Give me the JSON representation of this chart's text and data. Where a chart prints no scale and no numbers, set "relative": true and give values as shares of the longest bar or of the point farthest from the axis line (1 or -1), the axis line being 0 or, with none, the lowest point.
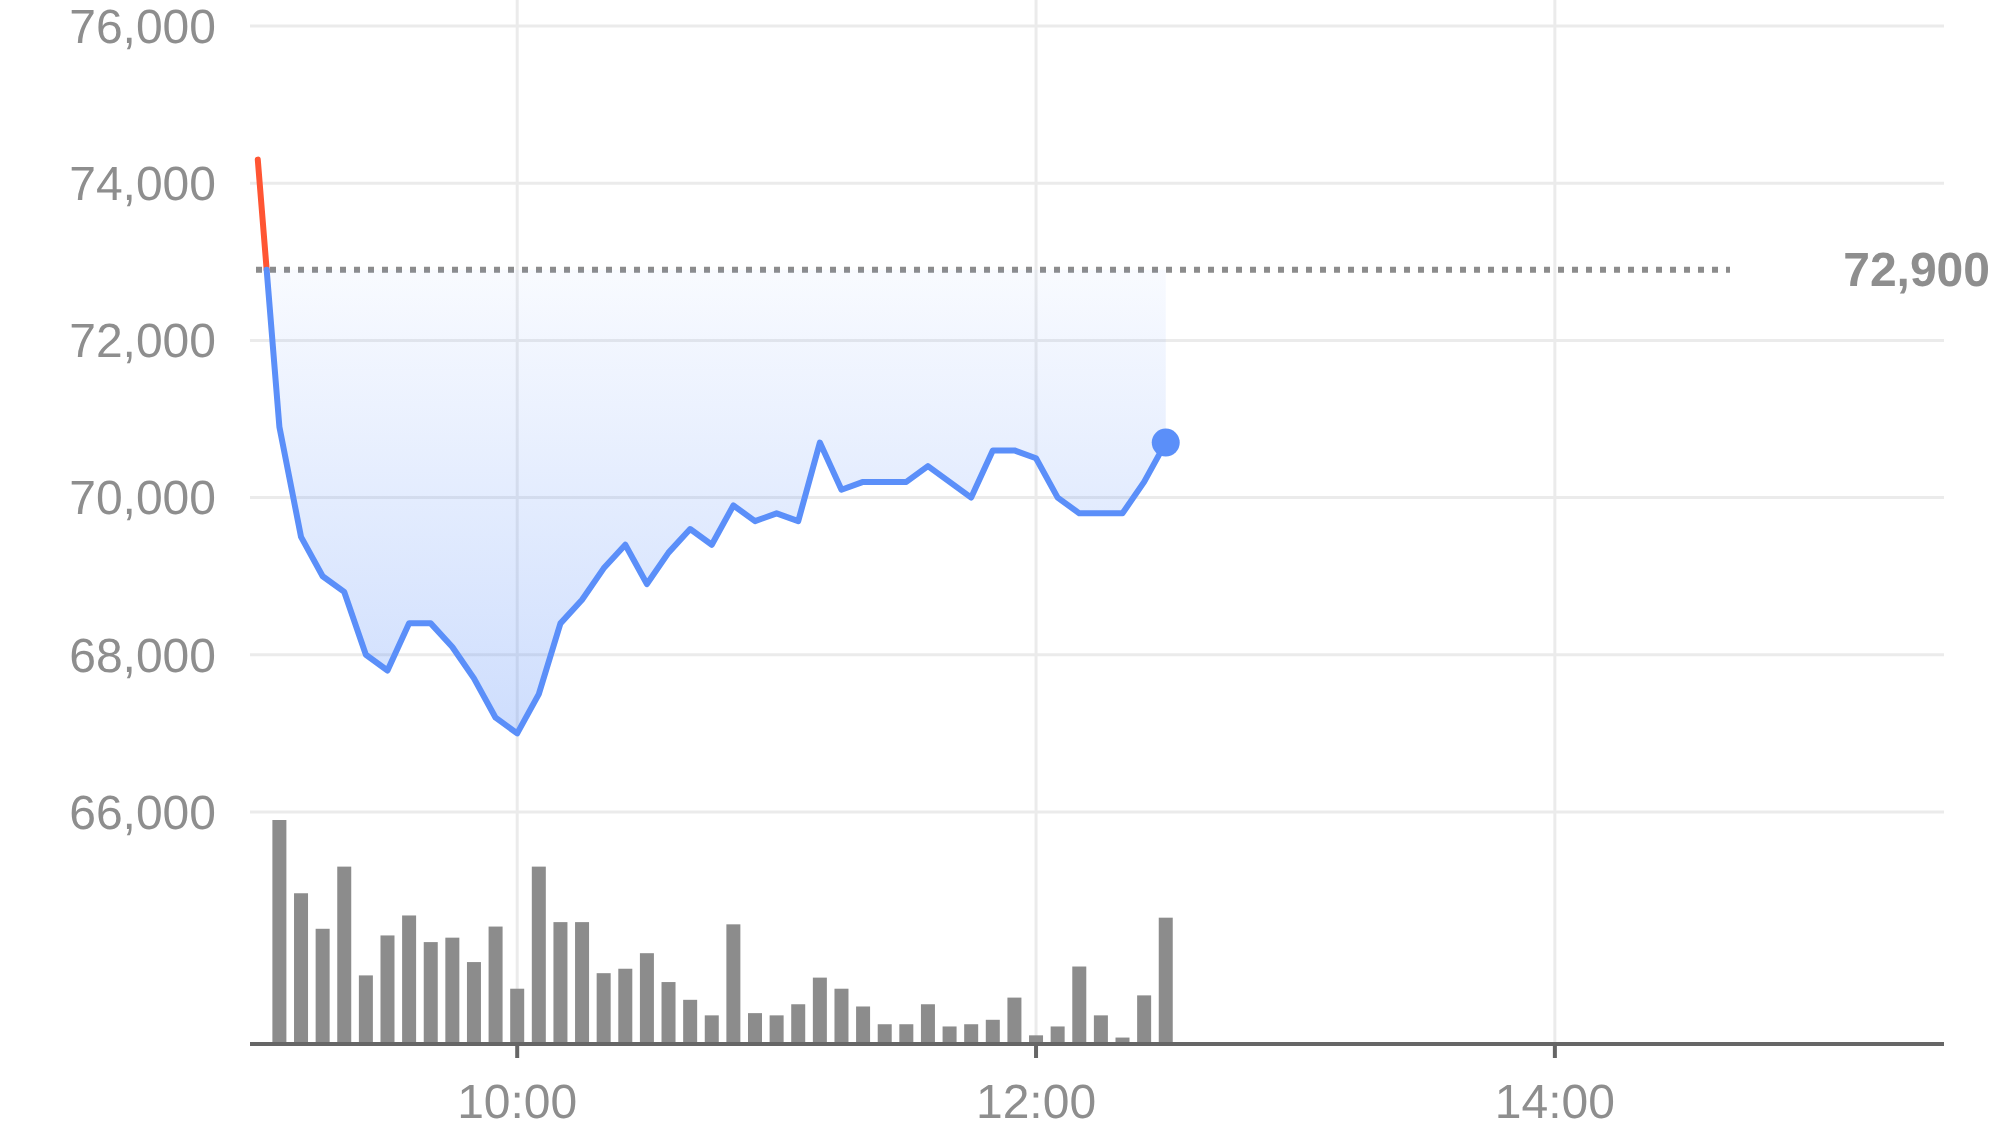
{
  "chart_data": [
    {
      "type": "line",
      "xlim": [
        8.97,
        15.5
      ],
      "xticks": [
        10,
        12,
        14
      ],
      "ylim": [
        66000,
        76000
      ],
      "yticks": [
        {
          "value": 66000,
          "label": "66,000"
        },
        {
          "value": 68000,
          "label": "68,000"
        },
        {
          "value": 70000,
          "label": "70,000"
        },
        {
          "value": 72000,
          "label": "72,000"
        },
        {
          "value": 74000,
          "label": "74,000"
        },
        {
          "value": 76000,
          "label": "76,000"
        }
      ],
      "grid": true,
      "tick_labels": "y",
      "ref_lines": [
        {
          "axis": "y",
          "value": 72900,
          "label": "72,900",
          "color": "#8c8c8c",
          "line_style": "dotted"
        }
      ],
      "series": [
        {
          "type": "line",
          "color": "#ff5533",
          "x": [
            9,
            9.0342
          ],
          "values": [
            74300,
            72900
          ]
        },
        {
          "type": "line",
          "color": "#5b8ff9",
          "x": [
            9.0342,
            9.0833,
            9.1667,
            9.25,
            9.3333,
            9.4167,
            9.5,
            9.5833,
            9.6667,
            9.75,
            9.8333,
            9.9167,
            10,
            10.0833,
            10.1667,
            10.25,
            10.3333,
            10.4167,
            10.5,
            10.5833,
            10.6667,
            10.75,
            10.8333,
            10.9167,
            11,
            11.0833,
            11.1667,
            11.25,
            11.3333,
            11.4167,
            11.5,
            11.5833,
            11.6667,
            11.75,
            11.8333,
            11.9167,
            12,
            12.0833,
            12.1667,
            12.25,
            12.3333,
            12.4167,
            12.5
          ],
          "values": [
            72900,
            70900,
            69500,
            69000,
            68800,
            68000,
            67800,
            68400,
            68400,
            68100,
            67700,
            67200,
            67000,
            67500,
            68400,
            68700,
            69100,
            69400,
            68900,
            69300,
            69600,
            69400,
            69900,
            69700,
            69800,
            69700,
            70700,
            70100,
            70200,
            70200,
            70200,
            70400,
            70200,
            70000,
            70600,
            70600,
            70500,
            70000,
            69800,
            69800,
            69800,
            70200,
            70700
          ],
          "lower": [
            72900,
            70900,
            69500,
            69000,
            68800,
            68000,
            67800,
            68400,
            68400,
            68100,
            67700,
            67200,
            67000,
            67500,
            68400,
            68700,
            69100,
            69400,
            68900,
            69300,
            69600,
            69400,
            69900,
            69700,
            69800,
            69700,
            70700,
            70100,
            70200,
            70200,
            70200,
            70400,
            70200,
            70000,
            70600,
            70600,
            70500,
            70000,
            69800,
            69800,
            69800,
            70200,
            70700
          ],
          "upper": [
            72900,
            72900,
            72900,
            72900,
            72900,
            72900,
            72900,
            72900,
            72900,
            72900,
            72900,
            72900,
            72900,
            72900,
            72900,
            72900,
            72900,
            72900,
            72900,
            72900,
            72900,
            72900,
            72900,
            72900,
            72900,
            72900,
            72900,
            72900,
            72900,
            72900,
            72900,
            72900,
            72900,
            72900,
            72900,
            72900,
            72900,
            72900,
            72900,
            72900,
            72900,
            72900,
            72900
          ]
        },
        {
          "type": "scatter",
          "color": "#5b8ff9",
          "x": [
            12.5
          ],
          "values": [
            70700
          ]
        }
      ]
    },
    {
      "type": "bar",
      "relative": true,
      "color": "#8c8c8c",
      "xlim": [
        8.97,
        15.5
      ],
      "xticks": [
        {
          "value": 10,
          "label": "10:00"
        },
        {
          "value": 12,
          "label": "12:00"
        },
        {
          "value": 14,
          "label": "14:00"
        }
      ],
      "grid": "x",
      "tick_labels": "x",
      "x": [
        9.0833,
        9.1667,
        9.25,
        9.3333,
        9.4167,
        9.5,
        9.5833,
        9.6667,
        9.75,
        9.8333,
        9.9167,
        10,
        10.0833,
        10.1667,
        10.25,
        10.3333,
        10.4167,
        10.5,
        10.5833,
        10.6667,
        10.75,
        10.8333,
        10.9167,
        11,
        11.0833,
        11.1667,
        11.25,
        11.3333,
        11.4167,
        11.5,
        11.5833,
        11.6667,
        11.75,
        11.8333,
        11.9167,
        12,
        12.0833,
        12.1667,
        12.25,
        12.3333,
        12.4167,
        12.5
      ],
      "values": [
        1.0,
        0.67,
        0.51,
        0.79,
        0.3,
        0.48,
        0.57,
        0.45,
        0.47,
        0.36,
        0.52,
        0.24,
        0.79,
        0.54,
        0.54,
        0.31,
        0.33,
        0.4,
        0.27,
        0.19,
        0.12,
        0.53,
        0.13,
        0.12,
        0.17,
        0.29,
        0.24,
        0.16,
        0.08,
        0.08,
        0.17,
        0.07,
        0.08,
        0.1,
        0.2,
        0.03,
        0.07,
        0.34,
        0.12,
        0.02,
        0.21,
        0.56
      ]
    }
  ]
}
